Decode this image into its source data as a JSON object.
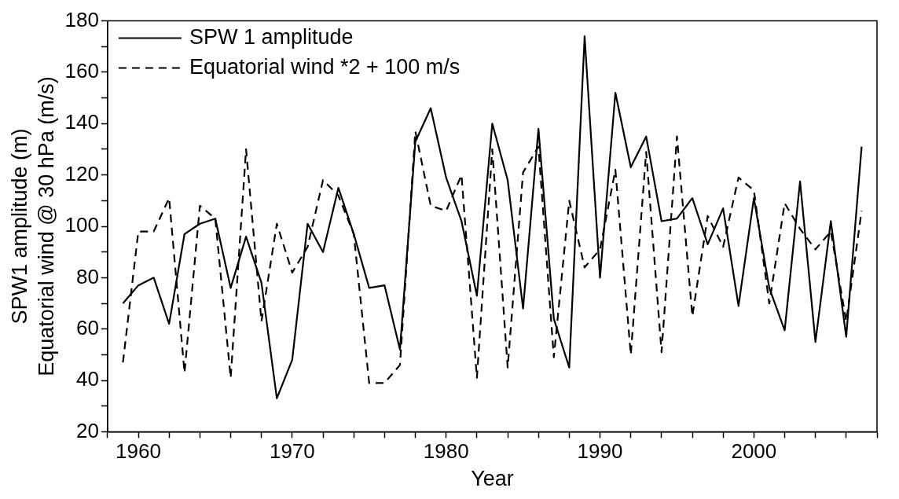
{
  "chart_data": {
    "type": "line",
    "xlabel": "Year",
    "ylabel": "SPW1 amplitude (m)\nEquatorial wind @ 30 hPa (m/s)",
    "x": [
      1959,
      1960,
      1961,
      1962,
      1963,
      1964,
      1965,
      1966,
      1967,
      1968,
      1969,
      1970,
      1971,
      1972,
      1973,
      1974,
      1975,
      1976,
      1977,
      1978,
      1979,
      1980,
      1981,
      1982,
      1983,
      1984,
      1985,
      1986,
      1987,
      1988,
      1989,
      1990,
      1991,
      1992,
      1993,
      1994,
      1995,
      1996,
      1997,
      1998,
      1999,
      2000,
      2001,
      2002,
      2003,
      2004,
      2005,
      2006,
      2007
    ],
    "series": [
      {
        "name": "SPW 1 amplitude",
        "color": "#000000",
        "line_style": "solid",
        "values": [
          70,
          77,
          80,
          62,
          97,
          101,
          103,
          76,
          96,
          78,
          33,
          48,
          101,
          90,
          115,
          97,
          76,
          77,
          52,
          133,
          146,
          119,
          102,
          73,
          140,
          118,
          68,
          138,
          64,
          45,
          174,
          80,
          152,
          123,
          135,
          102,
          103,
          111,
          93,
          107,
          69,
          111,
          76,
          59.5,
          117.5,
          55,
          102,
          57,
          131
        ]
      },
      {
        "name": "Equatorial wind *2 + 100 m/s",
        "color": "#000000",
        "line_style": "dashed",
        "values": [
          47,
          98,
          98,
          111,
          43,
          108,
          103,
          41,
          130,
          63,
          101,
          82,
          92,
          118,
          112,
          97,
          39,
          39,
          46,
          137,
          108,
          106,
          120,
          41,
          130,
          45,
          121,
          131,
          49,
          110,
          84,
          91,
          122,
          50,
          129,
          51,
          135,
          65,
          104,
          92,
          119,
          114,
          70,
          109,
          99,
          91,
          98,
          63,
          106
        ]
      }
    ],
    "xlim": [
      1958,
      2008
    ],
    "xticks": [
      {
        "value": 1958,
        "label": null
      },
      1960,
      {
        "value": 1962,
        "label": null
      },
      {
        "value": 1964,
        "label": null
      },
      {
        "value": 1966,
        "label": null
      },
      {
        "value": 1968,
        "label": null
      },
      1970,
      {
        "value": 1972,
        "label": null
      },
      {
        "value": 1974,
        "label": null
      },
      {
        "value": 1976,
        "label": null
      },
      {
        "value": 1978,
        "label": null
      },
      1980,
      {
        "value": 1982,
        "label": null
      },
      {
        "value": 1984,
        "label": null
      },
      {
        "value": 1986,
        "label": null
      },
      {
        "value": 1988,
        "label": null
      },
      1990,
      {
        "value": 1992,
        "label": null
      },
      {
        "value": 1994,
        "label": null
      },
      {
        "value": 1996,
        "label": null
      },
      {
        "value": 1998,
        "label": null
      },
      2000,
      {
        "value": 2002,
        "label": null
      },
      {
        "value": 2004,
        "label": null
      },
      {
        "value": 2006,
        "label": null
      },
      {
        "value": 2008,
        "label": null
      }
    ],
    "ylim": [
      20,
      180
    ],
    "yticks": [
      20,
      {
        "value": 30,
        "label": null
      },
      40,
      {
        "value": 50,
        "label": null
      },
      60,
      {
        "value": 70,
        "label": null
      },
      80,
      {
        "value": 90,
        "label": null
      },
      100,
      {
        "value": 110,
        "label": null
      },
      120,
      {
        "value": 130,
        "label": null
      },
      140,
      {
        "value": 150,
        "label": null
      },
      160,
      {
        "value": 170,
        "label": null
      },
      180
    ],
    "grid": false,
    "legend": "top left",
    "marker": "none"
  }
}
